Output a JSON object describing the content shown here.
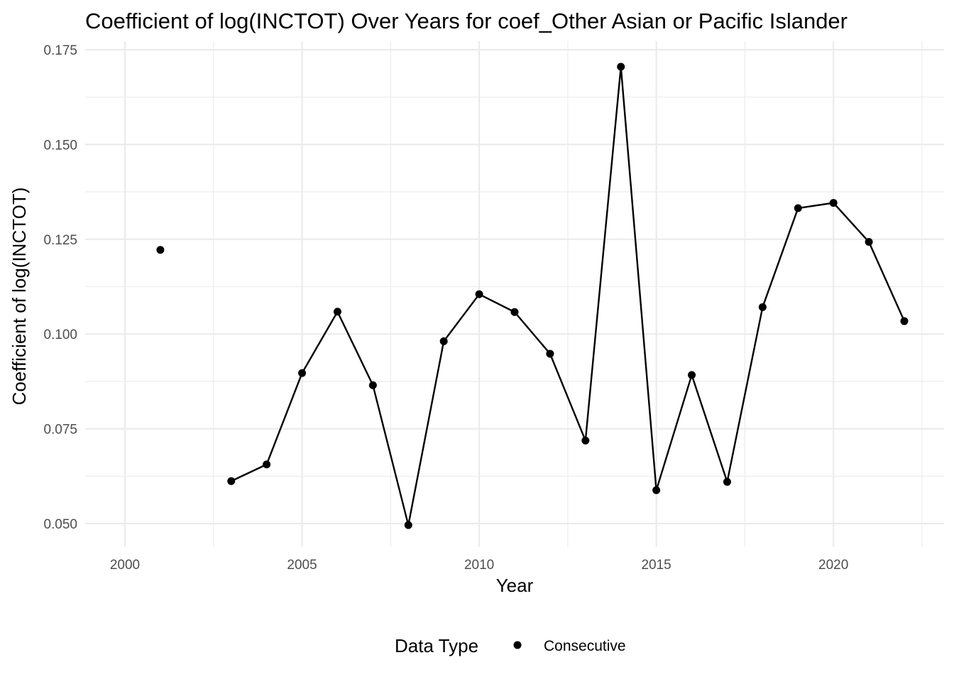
{
  "chart_data": {
    "type": "line",
    "title": "Coefficient of log(INCTOT) Over Years for coef_Other Asian or Pacific Islander",
    "xlabel": "Year",
    "ylabel": "Coefficient of log(INCTOT)",
    "xlim": [
      2000,
      2022
    ],
    "ylim": [
      0.05,
      0.17
    ],
    "x_ticks": [
      2000,
      2005,
      2010,
      2015,
      2020
    ],
    "y_ticks": [
      0.05,
      0.075,
      0.1,
      0.125,
      0.15,
      0.175
    ],
    "x_tick_labels": [
      "2000",
      "2005",
      "2010",
      "2015",
      "2020"
    ],
    "y_tick_labels": [
      "0.050",
      "0.075",
      "0.100",
      "0.125",
      "0.150",
      "0.175"
    ],
    "grid": true,
    "legend": {
      "title": "Data Type",
      "position": "bottom",
      "entries": [
        "Consecutive"
      ]
    },
    "series": [
      {
        "name": "Consecutive",
        "color": "#000000",
        "points": [
          {
            "x": 2001,
            "y": 0.1222
          },
          {
            "x": 2003,
            "y": 0.0612
          },
          {
            "x": 2004,
            "y": 0.0656
          },
          {
            "x": 2005,
            "y": 0.0897
          },
          {
            "x": 2006,
            "y": 0.1059
          },
          {
            "x": 2007,
            "y": 0.0865
          },
          {
            "x": 2008,
            "y": 0.0496
          },
          {
            "x": 2009,
            "y": 0.0981
          },
          {
            "x": 2010,
            "y": 0.1105
          },
          {
            "x": 2011,
            "y": 0.1058
          },
          {
            "x": 2012,
            "y": 0.0948
          },
          {
            "x": 2013,
            "y": 0.0719
          },
          {
            "x": 2014,
            "y": 0.1705
          },
          {
            "x": 2015,
            "y": 0.0588
          },
          {
            "x": 2016,
            "y": 0.0892
          },
          {
            "x": 2017,
            "y": 0.061
          },
          {
            "x": 2018,
            "y": 0.1071
          },
          {
            "x": 2019,
            "y": 0.1332
          },
          {
            "x": 2020,
            "y": 0.1346
          },
          {
            "x": 2021,
            "y": 0.1243
          },
          {
            "x": 2022,
            "y": 0.1034
          }
        ]
      }
    ]
  }
}
